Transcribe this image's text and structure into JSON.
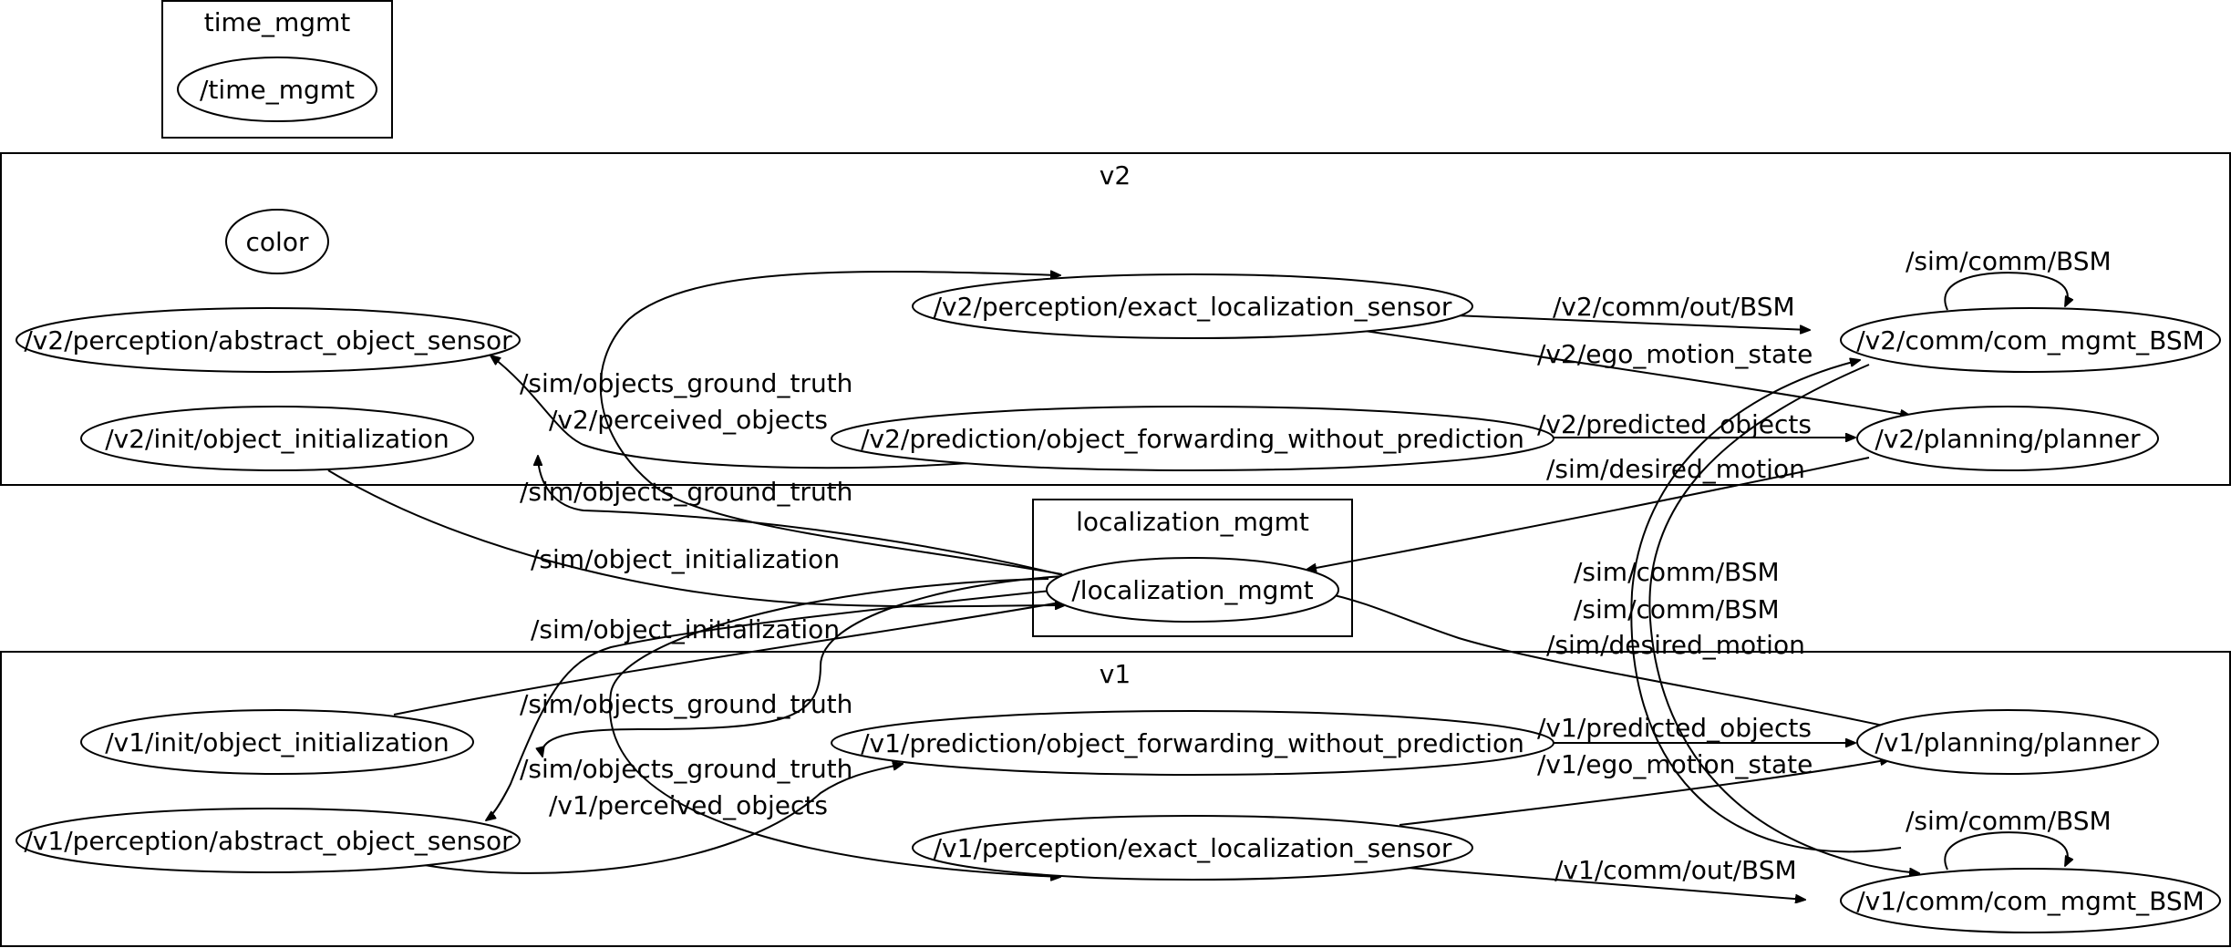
{
  "clusters": {
    "time_mgmt": "time_mgmt",
    "v2": "v2",
    "localization_mgmt": "localization_mgmt",
    "v1": "v1"
  },
  "nodes": {
    "time_mgmt": "/time_mgmt",
    "color": "color",
    "v2_abstract_sensor": "/v2/perception/abstract_object_sensor",
    "v2_exact_sensor": "/v2/perception/exact_localization_sensor",
    "v2_com_mgmt": "/v2/comm/com_mgmt_BSM",
    "v2_object_init": "/v2/init/object_initialization",
    "v2_prediction": "/v2/prediction/object_forwarding_without_prediction",
    "v2_planner": "/v2/planning/planner",
    "localization_mgmt": "/localization_mgmt",
    "v1_object_init": "/v1/init/object_initialization",
    "v1_prediction": "/v1/prediction/object_forwarding_without_prediction",
    "v1_planner": "/v1/planning/planner",
    "v1_abstract_sensor": "/v1/perception/abstract_object_sensor",
    "v1_exact_sensor": "/v1/perception/exact_localization_sensor",
    "v1_com_mgmt": "/v1/comm/com_mgmt_BSM"
  },
  "edge_labels": {
    "v2_bsm_self": "/sim/comm/BSM",
    "v2_comm_out": "/v2/comm/out/BSM",
    "v2_ego_motion": "/v2/ego_motion_state",
    "v2_gt_top": "/sim/objects_ground_truth",
    "v2_perceived": "/v2/perceived_objects",
    "v2_predicted": "/v2/predicted_objects",
    "v2_desired": "/sim/desired_motion",
    "v2_gt_bottom": "/sim/objects_ground_truth",
    "v2_init": "/sim/object_initialization",
    "v1_init": "/sim/object_initialization",
    "bsm_cross_1": "/sim/comm/BSM",
    "bsm_cross_2": "/sim/comm/BSM",
    "v1_desired": "/sim/desired_motion",
    "v1_gt_top": "/sim/objects_ground_truth",
    "v1_predicted": "/v1/predicted_objects",
    "v1_gt_bottom": "/sim/objects_ground_truth",
    "v1_ego_motion": "/v1/ego_motion_state",
    "v1_perceived": "/v1/perceived_objects",
    "v1_bsm_self": "/sim/comm/BSM",
    "v1_comm_out": "/v1/comm/out/BSM"
  }
}
